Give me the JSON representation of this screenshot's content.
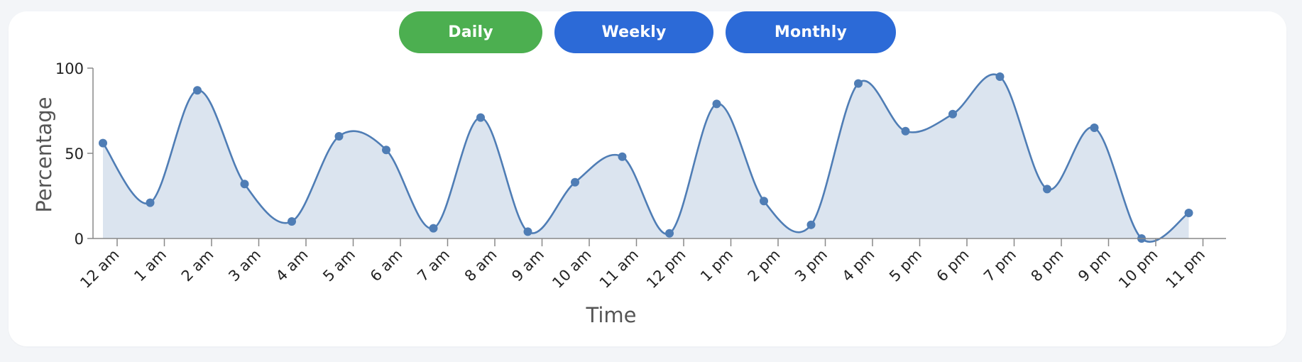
{
  "tabs": [
    {
      "label": "Daily",
      "active": true
    },
    {
      "label": "Weekly",
      "active": false
    },
    {
      "label": "Monthly",
      "active": false
    }
  ],
  "colors": {
    "active_tab": "#4caf50",
    "inactive_tab": "#2c6ad7",
    "line": "#4f7db5",
    "fill": "#dbe4ef",
    "axis": "#888888"
  },
  "chart_data": {
    "type": "area",
    "title": "",
    "xlabel": "Time",
    "ylabel": "Percentage",
    "categories": [
      "12 am",
      "1 am",
      "2 am",
      "3 am",
      "4 am",
      "5 am",
      "6 am",
      "7 am",
      "8 am",
      "9 am",
      "10 am",
      "11 am",
      "12 pm",
      "1 pm",
      "2 pm",
      "3 pm",
      "4 pm",
      "5 pm",
      "6 pm",
      "7 pm",
      "8 pm",
      "9 pm",
      "10 pm",
      "11 pm"
    ],
    "values": [
      56,
      21,
      87,
      32,
      10,
      60,
      52,
      6,
      71,
      4,
      33,
      48,
      3,
      79,
      22,
      8,
      91,
      63,
      73,
      95,
      29,
      65,
      0,
      15
    ],
    "ylim": [
      0,
      100
    ],
    "yticks": [
      0,
      50,
      100
    ],
    "grid": false,
    "legend": "none"
  }
}
